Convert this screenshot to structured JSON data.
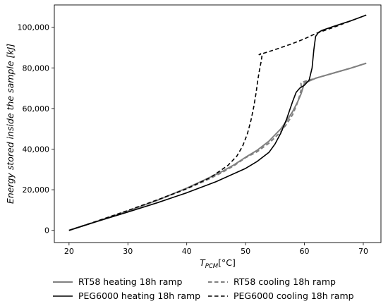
{
  "chart_data": {
    "type": "line",
    "xlabel": "T",
    "xlabel_sub": "PCM",
    "xlabel_unit": "[°C]",
    "ylabel": "Energy stored inside the sample [kJ]",
    "xlim": [
      17.5,
      73.0
    ],
    "ylim": [
      -6000,
      111000
    ],
    "xticks": [
      20,
      30,
      40,
      50,
      60,
      70
    ],
    "yticks": [
      0,
      20000,
      40000,
      60000,
      80000,
      100000
    ],
    "ytick_labels": [
      "0",
      "20,000",
      "40,000",
      "60,000",
      "80,000",
      "100,000"
    ],
    "grid": false,
    "legend_position": "below",
    "series": [
      {
        "name": "RT58 heating 18h ramp",
        "color": "#808080",
        "dash": "solid",
        "x": [
          20,
          25,
          30,
          35,
          40,
          43,
          46,
          48,
          50,
          52,
          54,
          56,
          57,
          58,
          58.8,
          59.4,
          60,
          62,
          65,
          68,
          70.5
        ],
        "y": [
          0,
          4700,
          9500,
          14800,
          20800,
          24800,
          29000,
          32200,
          36000,
          39500,
          44000,
          50000,
          54000,
          58500,
          63000,
          67000,
          72500,
          75000,
          77500,
          80000,
          82300
        ]
      },
      {
        "name": "RT58 cooling 18h ramp",
        "color": "#808080",
        "dash": "dashed",
        "x": [
          20,
          25,
          30,
          35,
          40,
          43,
          46,
          48,
          50,
          52,
          54,
          56,
          57,
          58,
          58.7,
          59.2,
          59.5,
          59.4,
          60,
          62,
          65,
          68,
          70.5
        ],
        "y": [
          0,
          4700,
          9500,
          14800,
          20500,
          24200,
          28500,
          31800,
          35800,
          38800,
          43000,
          48500,
          52500,
          57000,
          62000,
          66500,
          70000,
          72500,
          73300,
          75000,
          77500,
          80000,
          82300
        ]
      },
      {
        "name": "PEG6000 heating 18h ramp",
        "color": "#000000",
        "dash": "solid",
        "x": [
          20,
          25,
          30,
          35,
          40,
          45,
          50,
          52,
          54,
          55,
          56,
          57,
          58,
          58.6,
          59.2,
          60,
          60.8,
          61.3,
          61.6,
          61.9,
          62.4,
          63,
          65,
          68,
          70.5
        ],
        "y": [
          0,
          4600,
          9000,
          13600,
          18500,
          24000,
          30500,
          34000,
          38500,
          42500,
          48000,
          55000,
          63500,
          68000,
          70000,
          71500,
          74000,
          80000,
          89000,
          95500,
          97500,
          98500,
          100500,
          103300,
          106000
        ]
      },
      {
        "name": "PEG6000 cooling 18h ramp",
        "color": "#000000",
        "dash": "dashed",
        "x": [
          20,
          25,
          30,
          35,
          40,
          44,
          47,
          48.5,
          49.5,
          50.3,
          50.9,
          51.4,
          51.8,
          52.1,
          52.4,
          52.7,
          52.8,
          52.6,
          52.3,
          55,
          58,
          60,
          62,
          65,
          68,
          70.5
        ],
        "y": [
          0,
          4800,
          9800,
          15000,
          20500,
          26000,
          32000,
          36500,
          41500,
          47500,
          54000,
          61000,
          68000,
          74500,
          79500,
          84000,
          86500,
          87000,
          86500,
          89000,
          92000,
          94300,
          97000,
          100000,
          103300,
          106000
        ]
      }
    ]
  }
}
